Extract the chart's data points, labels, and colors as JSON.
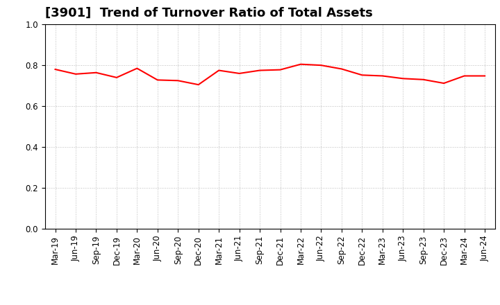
{
  "title": "[3901]  Trend of Turnover Ratio of Total Assets",
  "x_labels": [
    "Mar-19",
    "Jun-19",
    "Sep-19",
    "Dec-19",
    "Mar-20",
    "Jun-20",
    "Sep-20",
    "Dec-20",
    "Mar-21",
    "Jun-21",
    "Sep-21",
    "Dec-21",
    "Mar-22",
    "Jun-22",
    "Sep-22",
    "Dec-22",
    "Mar-23",
    "Jun-23",
    "Sep-23",
    "Dec-23",
    "Mar-24",
    "Jun-24"
  ],
  "y_values": [
    0.78,
    0.757,
    0.764,
    0.74,
    0.785,
    0.728,
    0.725,
    0.705,
    0.775,
    0.76,
    0.775,
    0.778,
    0.805,
    0.8,
    0.782,
    0.752,
    0.748,
    0.735,
    0.73,
    0.712,
    0.748,
    0.748
  ],
  "line_color": "#FF0000",
  "line_width": 1.5,
  "ylim": [
    0.0,
    1.0
  ],
  "yticks": [
    0.0,
    0.2,
    0.4,
    0.6,
    0.8,
    1.0
  ],
  "background_color": "#FFFFFF",
  "grid_color": "#BBBBBB",
  "title_fontsize": 13,
  "tick_fontsize": 8.5
}
